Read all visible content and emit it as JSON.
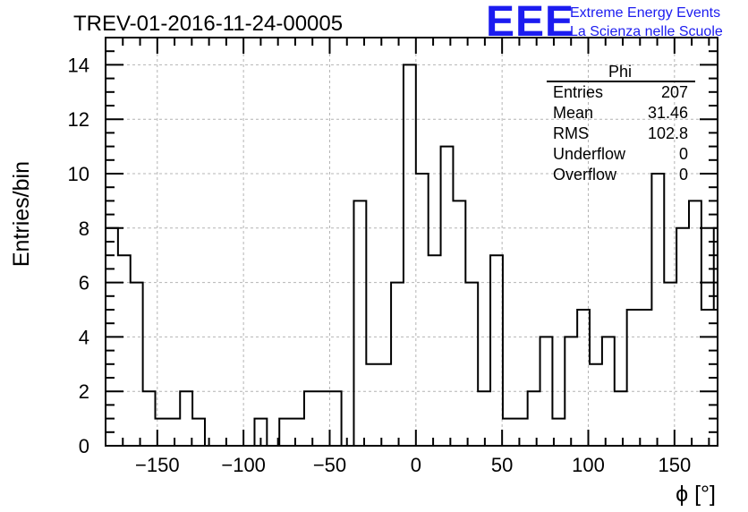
{
  "chart_data": {
    "type": "histogram",
    "title": "TREV-01-2016-11-24-00005",
    "xlabel": "ϕ [°]",
    "ylabel": "Entries/bin",
    "xlim": [
      -180,
      175
    ],
    "ylim": [
      0,
      15
    ],
    "bin_width": 7.2,
    "bin_edges_start": -180,
    "values": [
      8,
      7,
      6,
      2,
      1,
      1,
      2,
      1,
      0,
      0,
      0,
      0,
      1,
      0,
      1,
      1,
      2,
      2,
      2,
      0,
      9,
      3,
      3,
      6,
      14,
      10,
      7,
      11,
      9,
      6,
      2,
      7,
      1,
      1,
      2,
      4,
      1,
      4,
      5,
      3,
      4,
      2,
      5,
      5,
      10,
      6,
      8,
      9,
      5,
      8
    ],
    "x_ticks": [
      -150,
      -100,
      -50,
      0,
      50,
      100,
      150
    ],
    "x_tick_labels": [
      "−150",
      "−100",
      "−50",
      "0",
      "50",
      "100",
      "150"
    ],
    "y_ticks": [
      0,
      2,
      4,
      6,
      8,
      10,
      12,
      14
    ],
    "y_tick_labels": [
      "0",
      "2",
      "4",
      "6",
      "8",
      "10",
      "12",
      "14"
    ],
    "grid": true
  },
  "stats_box": {
    "name": "Phi",
    "rows": [
      {
        "label": "Entries",
        "value": "207"
      },
      {
        "label": "Mean",
        "value": "31.46"
      },
      {
        "label": "RMS",
        "value": "102.8"
      },
      {
        "label": "Underflow",
        "value": "0"
      },
      {
        "label": "Overflow",
        "value": "0"
      }
    ]
  },
  "logo": {
    "mark": "EEE",
    "line1": "Extreme Energy Events",
    "line2": "La Scienza nelle Scuole"
  },
  "colors": {
    "logo_blue": "#1c1cf0",
    "histogram_line": "#000000",
    "grid": "#b4b4b4"
  }
}
